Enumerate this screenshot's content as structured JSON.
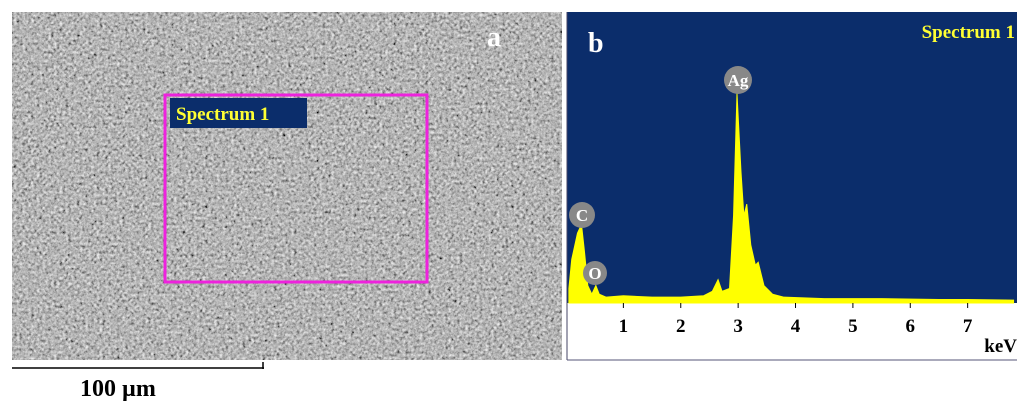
{
  "panel_a": {
    "label": "a",
    "region_label": "Spectrum 1",
    "scale_bar": "100 µm"
  },
  "chart_data": {
    "type": "area",
    "label": "b",
    "title": "Spectrum 1",
    "x": [
      0.05,
      0.1,
      0.2,
      0.27,
      0.32,
      0.38,
      0.45,
      0.52,
      0.58,
      0.7,
      1.0,
      1.5,
      2.0,
      2.4,
      2.55,
      2.65,
      2.72,
      2.85,
      2.92,
      2.98,
      3.05,
      3.1,
      3.15,
      3.22,
      3.3,
      3.35,
      3.45,
      3.6,
      3.8,
      4.5,
      5.5,
      6.5,
      7.0,
      7.8
    ],
    "values": [
      5,
      15,
      24,
      27,
      18,
      6,
      3,
      6,
      3,
      2,
      2.5,
      2,
      2,
      2.5,
      4,
      8,
      4,
      5,
      30,
      72,
      45,
      30,
      34,
      20,
      13,
      14,
      6,
      3,
      2,
      1.5,
      1.5,
      1.2,
      1.2,
      1
    ],
    "color": "#ffff00",
    "xlim": [
      0,
      7.86
    ],
    "ylim": [
      0,
      100
    ],
    "xticks": [
      1,
      2,
      3,
      4,
      5,
      6,
      7
    ],
    "xlabel": "keV",
    "annotations": [
      "Ag",
      "C",
      "O"
    ]
  }
}
